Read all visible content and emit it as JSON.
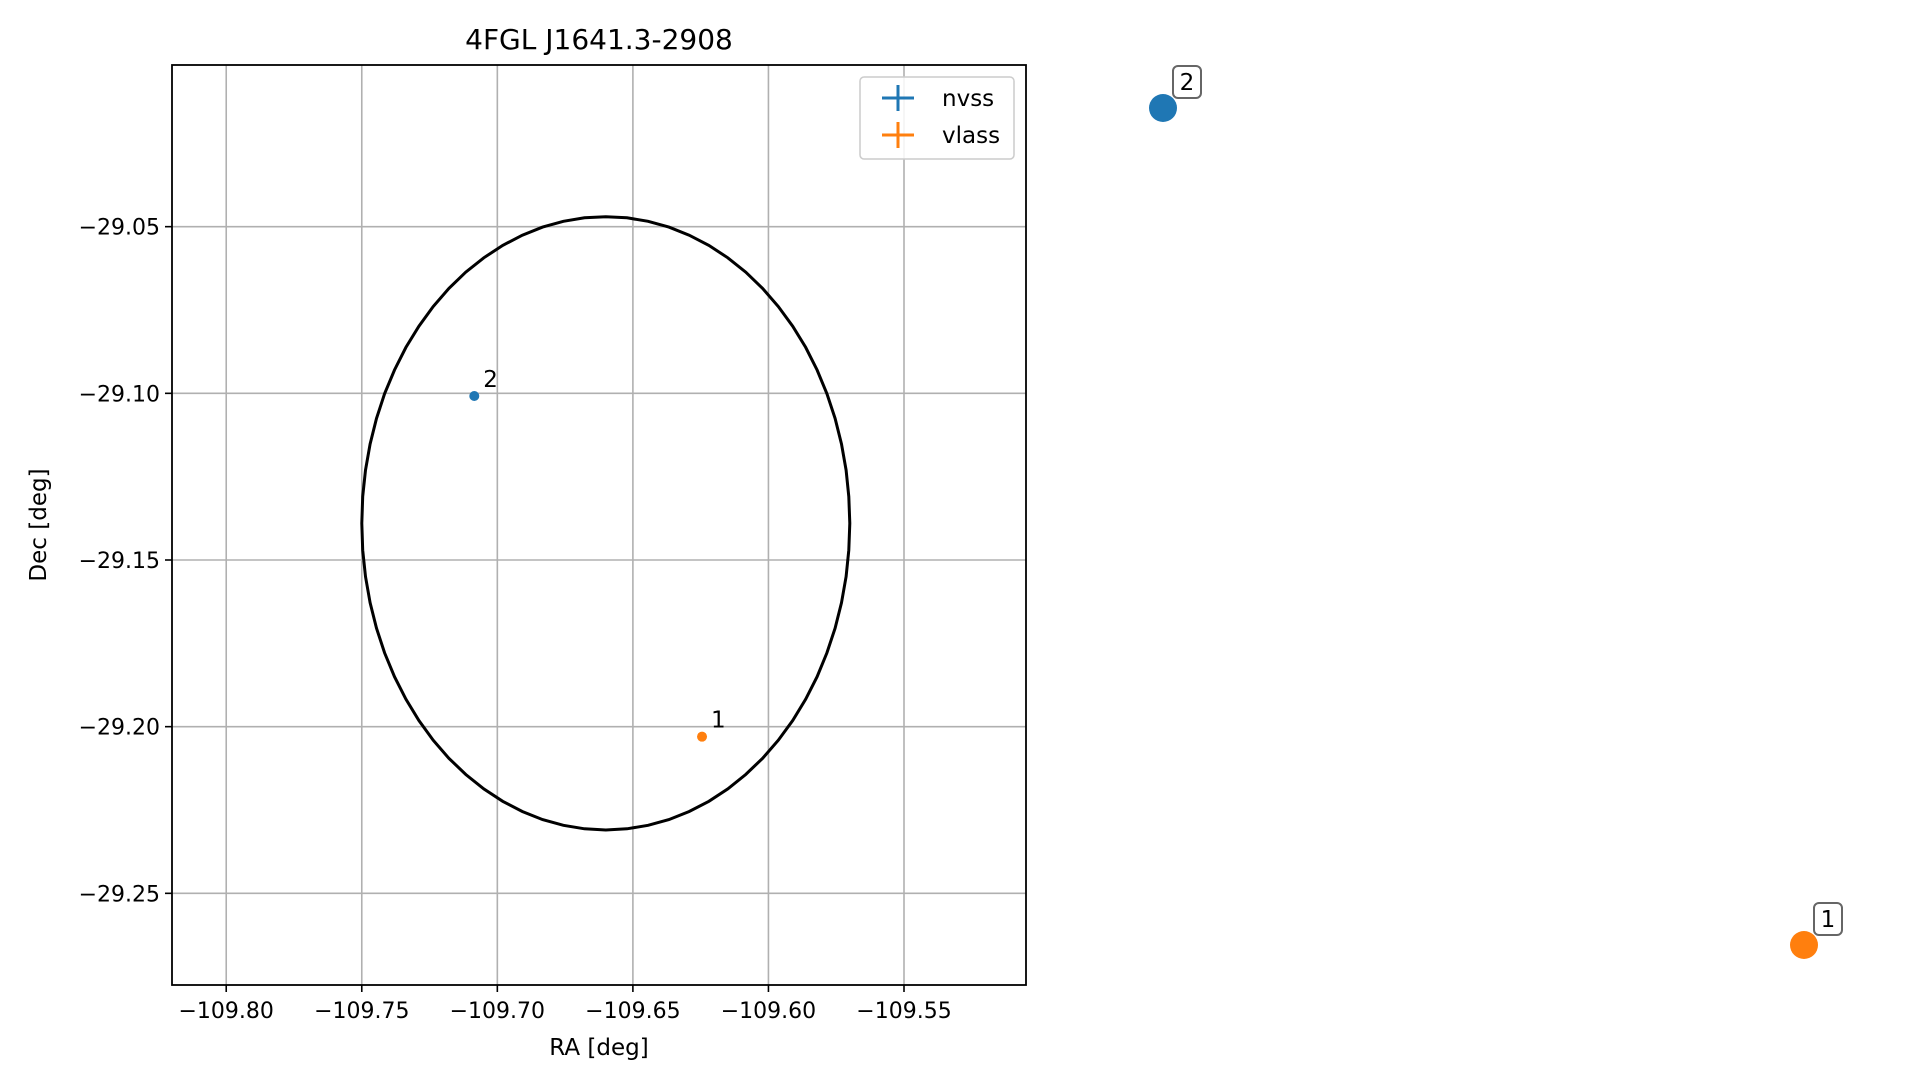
{
  "chart_data": {
    "type": "scatter",
    "title": "4FGL J1641.3-2908",
    "xlabel": "RA [deg]",
    "ylabel": "Dec [deg]",
    "xlim": [
      -109.82,
      -109.505
    ],
    "ylim": [
      -29.2775,
      -29.0015
    ],
    "x_ticks": [
      -109.8,
      -109.75,
      -109.7,
      -109.65,
      -109.6,
      -109.55
    ],
    "x_tick_labels": [
      "−109.80",
      "−109.75",
      "−109.70",
      "−109.65",
      "−109.60",
      "−109.55"
    ],
    "y_ticks": [
      -29.05,
      -29.1,
      -29.15,
      -29.2,
      -29.25
    ],
    "y_tick_labels": [
      "−29.05",
      "−29.10",
      "−29.15",
      "−29.20",
      "−29.25"
    ],
    "grid": true,
    "legend_position": "top-right",
    "series": [
      {
        "name": "nvss",
        "color": "#1f77b4",
        "points": [
          {
            "x": -109.7085,
            "y": -29.1008,
            "label": "2"
          }
        ]
      },
      {
        "name": "vlass",
        "color": "#ff7f0e",
        "points": [
          {
            "x": -109.6245,
            "y": -29.203,
            "label": "1"
          }
        ]
      }
    ],
    "ellipse": {
      "center_x": -109.66,
      "center_y": -29.139,
      "semi_axis_ra": 0.09,
      "semi_axis_dec": 0.092,
      "color": "#000000"
    },
    "side_markers": [
      {
        "label": "2",
        "color": "#1f77b4"
      },
      {
        "label": "1",
        "color": "#ff7f0e"
      }
    ]
  }
}
